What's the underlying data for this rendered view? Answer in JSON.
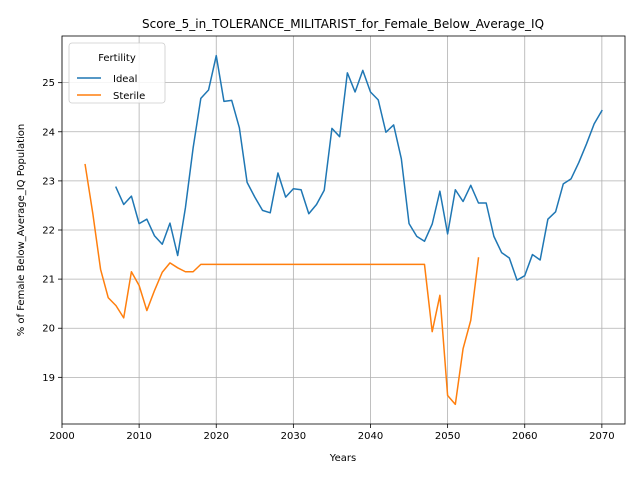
{
  "chart_data": {
    "type": "line",
    "title": "Score_5_in_TOLERANCE_MILITARIST_for_Female_Below_Average_IQ",
    "xlabel": "Years",
    "ylabel": "% of Female Below_Average_IQ Population",
    "xlim": [
      2000,
      2073
    ],
    "ylim": [
      18.05,
      25.95
    ],
    "xticks": [
      2000,
      2010,
      2020,
      2030,
      2040,
      2050,
      2060,
      2070
    ],
    "yticks": [
      19,
      20,
      21,
      22,
      23,
      24,
      25
    ],
    "grid": true,
    "legend": {
      "title": "Fertility",
      "placement": "top-left"
    },
    "series": [
      {
        "name": "Ideal",
        "color": "#1f77b4",
        "x": [
          2007,
          2008,
          2009,
          2010,
          2011,
          2012,
          2013,
          2014,
          2015,
          2016,
          2017,
          2018,
          2019,
          2020,
          2021,
          2022,
          2023,
          2024,
          2025,
          2026,
          2027,
          2028,
          2029,
          2030,
          2031,
          2032,
          2033,
          2034,
          2035,
          2036,
          2037,
          2038,
          2039,
          2040,
          2041,
          2042,
          2043,
          2044,
          2045,
          2046,
          2047,
          2048,
          2049,
          2050,
          2051,
          2052,
          2053,
          2054,
          2055,
          2056,
          2057,
          2058,
          2059,
          2060,
          2061,
          2062,
          2063,
          2064,
          2065,
          2066,
          2067,
          2068,
          2069,
          2070
        ],
        "y": [
          22.87,
          22.52,
          22.69,
          22.13,
          22.22,
          21.88,
          21.71,
          22.14,
          21.48,
          22.45,
          23.67,
          24.68,
          24.85,
          25.55,
          24.62,
          24.64,
          24.08,
          22.97,
          22.67,
          22.4,
          22.35,
          23.16,
          22.67,
          22.84,
          22.82,
          22.33,
          22.52,
          22.81,
          24.07,
          23.9,
          25.2,
          24.81,
          25.25,
          24.81,
          24.65,
          23.99,
          24.14,
          23.45,
          22.13,
          21.87,
          21.77,
          22.12,
          22.79,
          21.92,
          22.82,
          22.58,
          22.91,
          22.55,
          22.55,
          21.87,
          21.54,
          21.43,
          20.98,
          21.07,
          21.5,
          21.39,
          22.22,
          22.37,
          22.94,
          23.04,
          23.37,
          23.75,
          24.16,
          24.43
        ]
      },
      {
        "name": "Sterile",
        "color": "#ff7f0e",
        "x": [
          2003,
          2004,
          2005,
          2006,
          2007,
          2008,
          2009,
          2010,
          2011,
          2012,
          2013,
          2014,
          2015,
          2016,
          2017,
          2018,
          2019,
          2020,
          2021,
          2022,
          2023,
          2024,
          2025,
          2026,
          2027,
          2028,
          2029,
          2030,
          2031,
          2032,
          2033,
          2034,
          2035,
          2036,
          2037,
          2038,
          2039,
          2040,
          2041,
          2042,
          2043,
          2044,
          2045,
          2046,
          2047,
          2048,
          2049,
          2050,
          2051,
          2052,
          2053,
          2054
        ],
        "y": [
          23.33,
          22.33,
          21.2,
          20.62,
          20.46,
          20.21,
          21.15,
          20.87,
          20.36,
          20.77,
          21.14,
          21.33,
          21.23,
          21.15,
          21.15,
          21.3,
          21.3,
          21.3,
          21.3,
          21.3,
          21.3,
          21.3,
          21.3,
          21.3,
          21.3,
          21.3,
          21.3,
          21.3,
          21.3,
          21.3,
          21.3,
          21.3,
          21.3,
          21.3,
          21.3,
          21.3,
          21.3,
          21.3,
          21.3,
          21.3,
          21.3,
          21.3,
          21.3,
          21.3,
          21.3,
          19.93,
          20.67,
          18.63,
          18.45,
          19.58,
          20.16,
          21.43
        ]
      }
    ]
  }
}
